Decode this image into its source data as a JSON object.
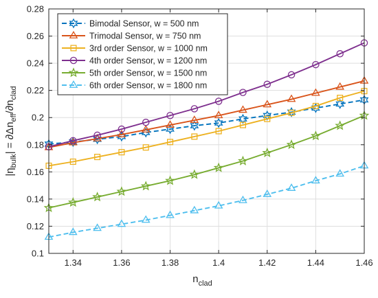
{
  "chart_data": {
    "type": "line",
    "title": "",
    "xlabel": "n",
    "xlabel_sub": "clad",
    "ylabel_parts": [
      {
        "t": "|η",
        "sub": false
      },
      {
        "t": "bulk",
        "sub": true
      },
      {
        "t": "| = ∂Δn",
        "sub": false
      },
      {
        "t": "eff",
        "sub": true
      },
      {
        "t": "/∂n",
        "sub": false
      },
      {
        "t": "clad",
        "sub": true
      }
    ],
    "xlim": [
      1.33,
      1.46
    ],
    "ylim": [
      0.1,
      0.28
    ],
    "xticks": [
      "1.34",
      "1.36",
      "1.38",
      "1.4",
      "1.42",
      "1.44",
      "1.46"
    ],
    "xtick_values": [
      1.34,
      1.36,
      1.38,
      1.4,
      1.42,
      1.44,
      1.46
    ],
    "yticks": [
      "0.1",
      "0.12",
      "0.14",
      "0.16",
      "0.18",
      "0.2",
      "0.22",
      "0.24",
      "0.26",
      "0.28"
    ],
    "ytick_values": [
      0.1,
      0.12,
      0.14,
      0.16,
      0.18,
      0.2,
      0.22,
      0.24,
      0.26,
      0.28
    ],
    "grid": true,
    "legend_position": "top-left",
    "x": [
      1.33,
      1.34,
      1.35,
      1.36,
      1.37,
      1.38,
      1.39,
      1.4,
      1.41,
      1.42,
      1.43,
      1.44,
      1.45,
      1.46
    ],
    "series": [
      {
        "name": "Bimodal Sensor, w = 500 nm",
        "color": "#0072BD",
        "marker": "hexagram",
        "dash": true,
        "values": [
          0.1805,
          0.182,
          0.184,
          0.186,
          0.189,
          0.1915,
          0.194,
          0.196,
          0.199,
          0.2015,
          0.204,
          0.207,
          0.21,
          0.213
        ]
      },
      {
        "name": "Trimodal Sensor, w = 750 nm",
        "color": "#D95319",
        "marker": "triangle",
        "dash": false,
        "values": [
          0.178,
          0.1815,
          0.1845,
          0.1875,
          0.191,
          0.1945,
          0.198,
          0.2015,
          0.2055,
          0.2095,
          0.2135,
          0.218,
          0.2225,
          0.227
        ]
      },
      {
        "name": "3rd order Sensor, w = 1000 nm",
        "color": "#EDB120",
        "marker": "square",
        "dash": false,
        "values": [
          0.1645,
          0.1675,
          0.171,
          0.1745,
          0.178,
          0.182,
          0.186,
          0.19,
          0.1945,
          0.199,
          0.2035,
          0.2085,
          0.2145,
          0.2195
        ]
      },
      {
        "name": "4th order Sensor, w = 1200 nm",
        "color": "#7E2F8E",
        "marker": "circle",
        "dash": false,
        "values": [
          0.1785,
          0.183,
          0.187,
          0.1915,
          0.1965,
          0.2015,
          0.2065,
          0.212,
          0.2185,
          0.2245,
          0.2315,
          0.239,
          0.247,
          0.255
        ]
      },
      {
        "name": "5th order Sensor, w = 1500 nm",
        "color": "#77AC30",
        "marker": "star",
        "dash": false,
        "values": [
          0.1335,
          0.1375,
          0.1415,
          0.1455,
          0.1495,
          0.1535,
          0.158,
          0.163,
          0.168,
          0.174,
          0.18,
          0.1865,
          0.194,
          0.2015
        ]
      },
      {
        "name": "6th order Sensor, w = 1800 nm",
        "color": "#4DBEEE",
        "marker": "triangle",
        "dash": true,
        "values": [
          0.112,
          0.1155,
          0.1185,
          0.1215,
          0.1245,
          0.128,
          0.1315,
          0.135,
          0.139,
          0.1435,
          0.148,
          0.1535,
          0.1585,
          0.1645
        ]
      }
    ]
  }
}
